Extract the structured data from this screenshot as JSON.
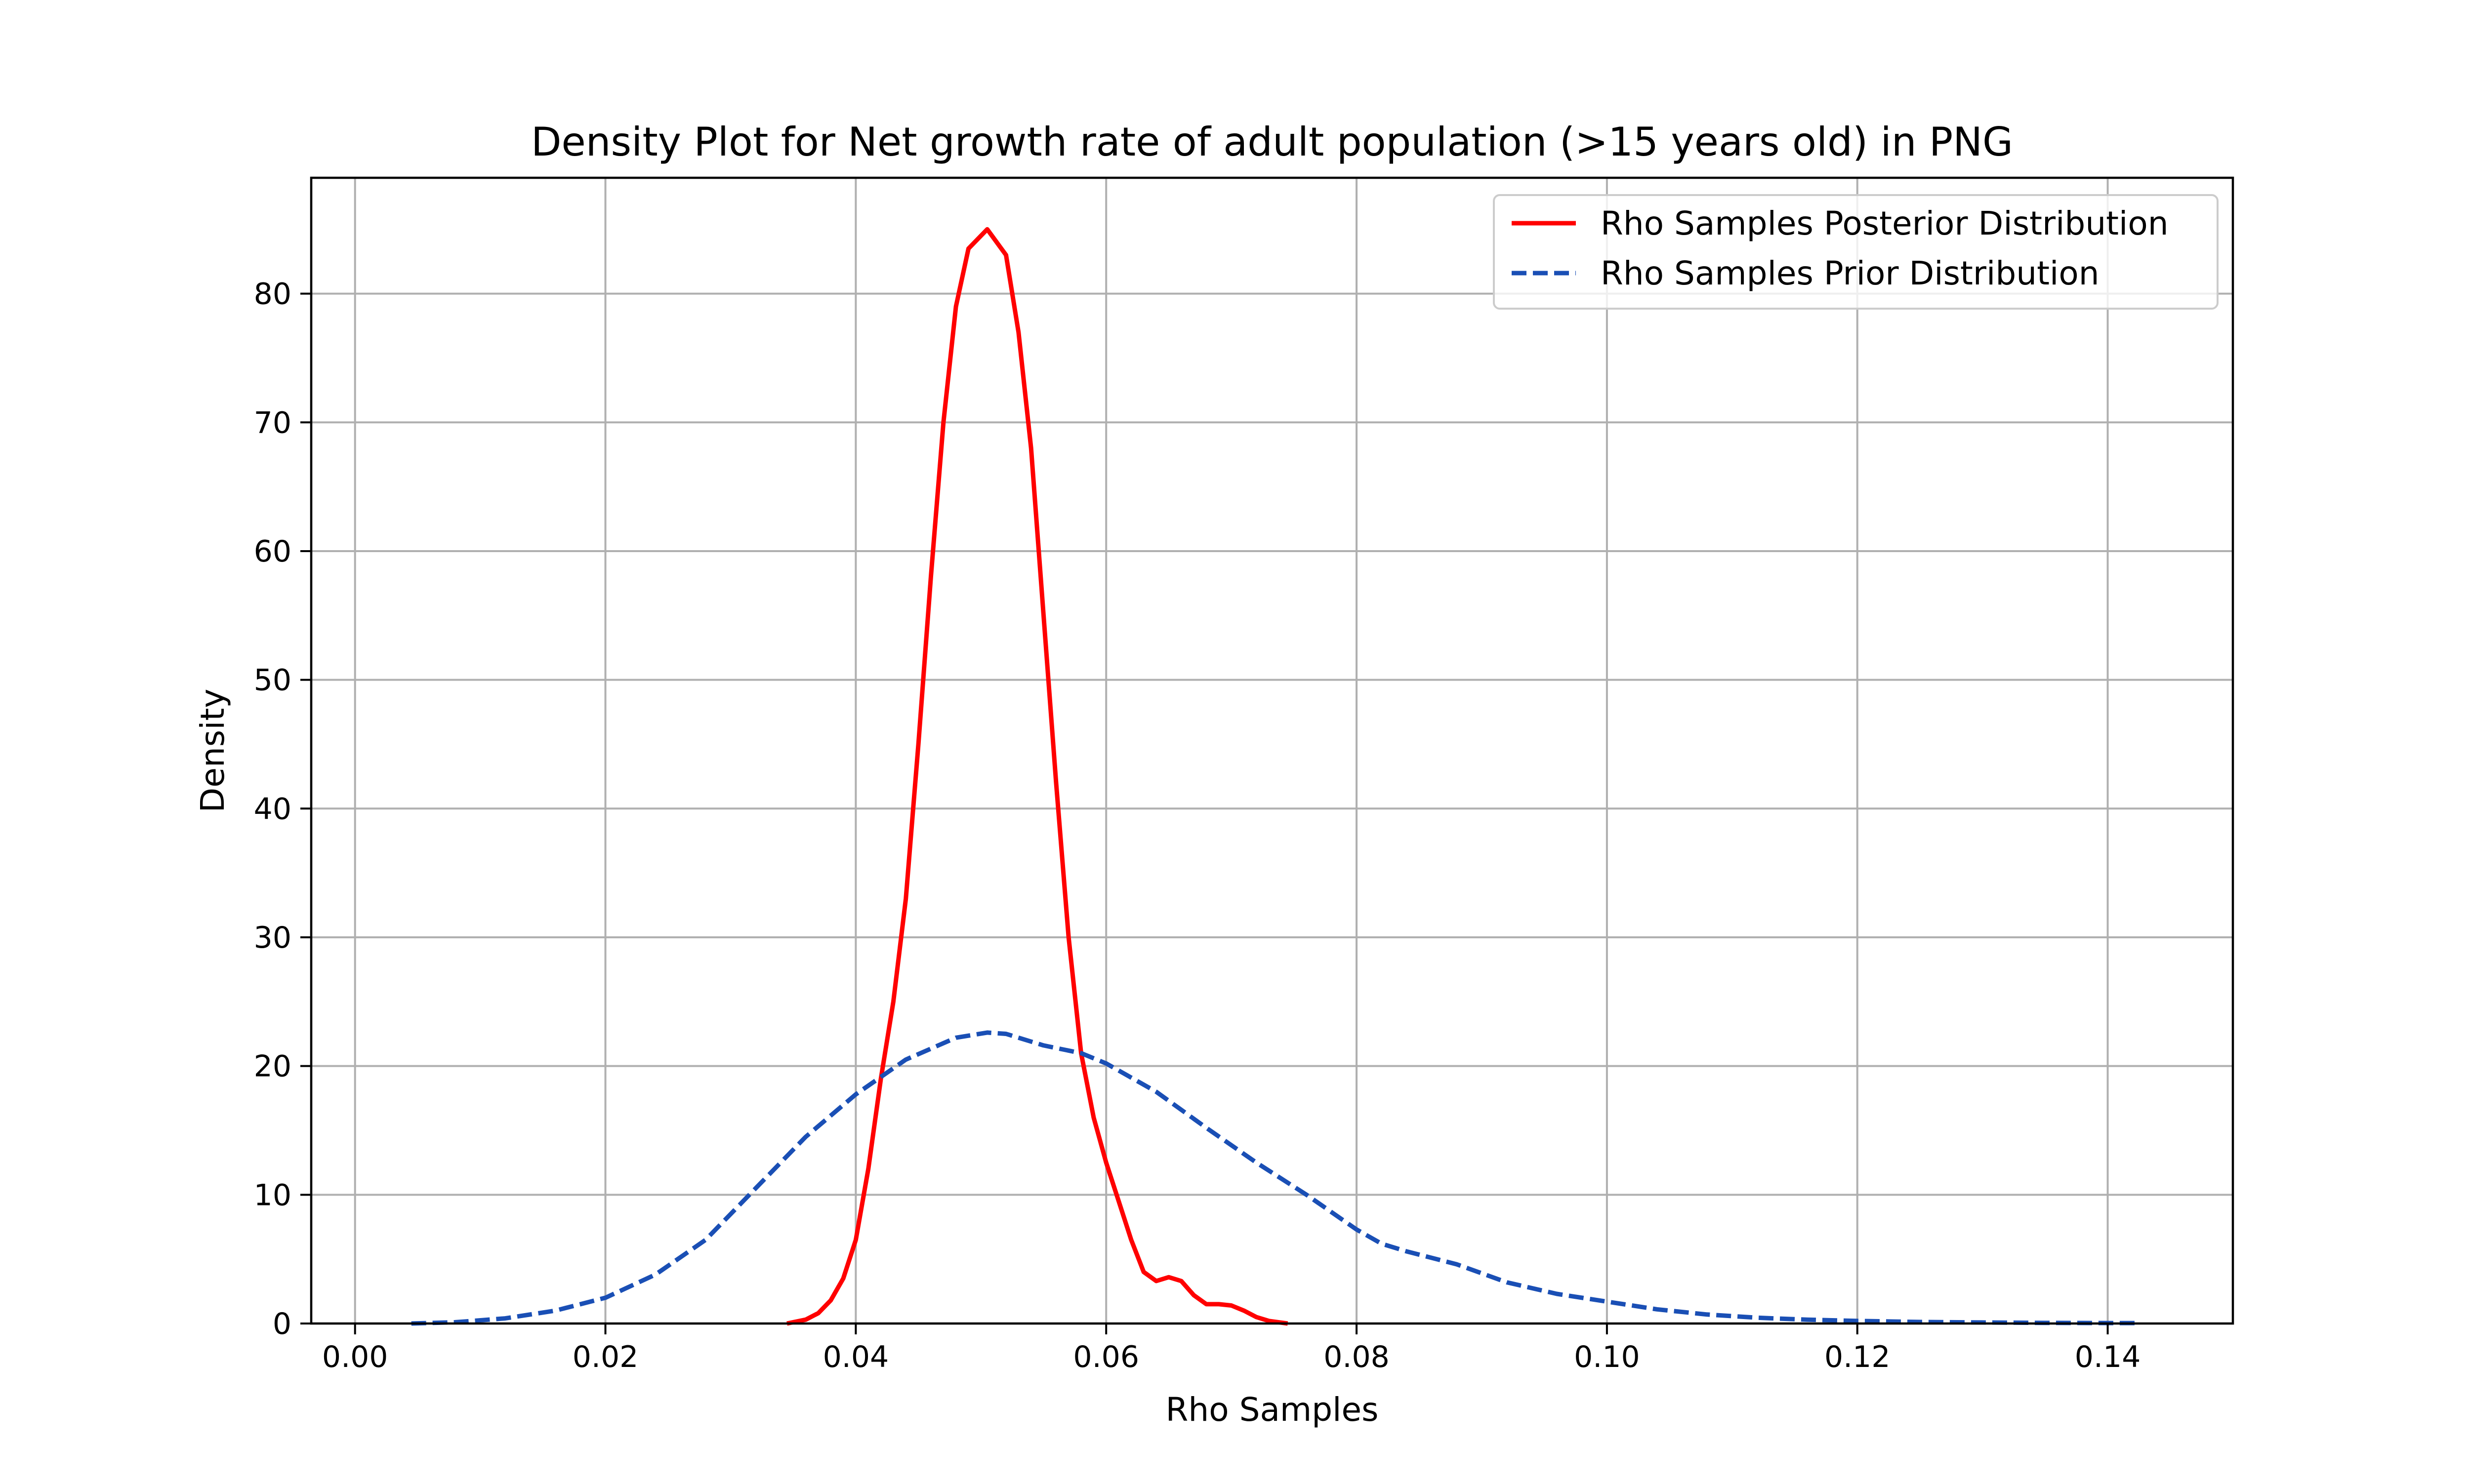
{
  "chart_data": {
    "type": "line",
    "title": "Density Plot for Net growth rate of adult population (>15 years old) in PNG",
    "xlabel": "Rho Samples",
    "ylabel": "Density",
    "xlim": [
      -0.0035,
      0.15
    ],
    "ylim": [
      0,
      89
    ],
    "xticks": [
      0.0,
      0.02,
      0.04,
      0.06,
      0.08,
      0.1,
      0.12,
      0.14
    ],
    "xtick_labels": [
      "0.00",
      "0.02",
      "0.04",
      "0.06",
      "0.08",
      "0.10",
      "0.12",
      "0.14"
    ],
    "yticks": [
      0,
      10,
      20,
      30,
      40,
      50,
      60,
      70,
      80
    ],
    "ytick_labels": [
      "0",
      "10",
      "20",
      "30",
      "40",
      "50",
      "60",
      "70",
      "80"
    ],
    "grid": true,
    "legend_position": "top-right",
    "series": [
      {
        "name": "Rho Samples Posterior Distribution",
        "color": "#ff0000",
        "line_style": "solid",
        "points": [
          [
            0.0345,
            0.0
          ],
          [
            0.036,
            0.3
          ],
          [
            0.037,
            0.8
          ],
          [
            0.038,
            1.8
          ],
          [
            0.039,
            3.5
          ],
          [
            0.04,
            6.5
          ],
          [
            0.041,
            12.0
          ],
          [
            0.042,
            19.0
          ],
          [
            0.043,
            25.0
          ],
          [
            0.044,
            33.0
          ],
          [
            0.045,
            45.0
          ],
          [
            0.046,
            58.0
          ],
          [
            0.047,
            70.0
          ],
          [
            0.048,
            79.0
          ],
          [
            0.049,
            83.5
          ],
          [
            0.0505,
            85.0
          ],
          [
            0.052,
            83.0
          ],
          [
            0.053,
            77.0
          ],
          [
            0.054,
            68.0
          ],
          [
            0.055,
            55.0
          ],
          [
            0.056,
            42.0
          ],
          [
            0.057,
            30.0
          ],
          [
            0.058,
            21.0
          ],
          [
            0.059,
            16.0
          ],
          [
            0.06,
            12.5
          ],
          [
            0.061,
            9.5
          ],
          [
            0.062,
            6.5
          ],
          [
            0.063,
            4.0
          ],
          [
            0.064,
            3.3
          ],
          [
            0.065,
            3.6
          ],
          [
            0.066,
            3.3
          ],
          [
            0.067,
            2.2
          ],
          [
            0.068,
            1.5
          ],
          [
            0.069,
            1.5
          ],
          [
            0.07,
            1.4
          ],
          [
            0.071,
            1.0
          ],
          [
            0.072,
            0.5
          ],
          [
            0.073,
            0.2
          ],
          [
            0.0745,
            0.0
          ]
        ]
      },
      {
        "name": "Rho Samples Prior Distribution",
        "color": "#1a4fb5",
        "line_style": "dashed",
        "points": [
          [
            0.0045,
            0.0
          ],
          [
            0.008,
            0.1
          ],
          [
            0.012,
            0.4
          ],
          [
            0.016,
            1.0
          ],
          [
            0.02,
            2.0
          ],
          [
            0.024,
            3.8
          ],
          [
            0.028,
            6.5
          ],
          [
            0.032,
            10.5
          ],
          [
            0.036,
            14.5
          ],
          [
            0.04,
            17.8
          ],
          [
            0.044,
            20.5
          ],
          [
            0.048,
            22.2
          ],
          [
            0.0505,
            22.6
          ],
          [
            0.052,
            22.5
          ],
          [
            0.055,
            21.6
          ],
          [
            0.058,
            21.0
          ],
          [
            0.06,
            20.2
          ],
          [
            0.064,
            18.0
          ],
          [
            0.068,
            15.2
          ],
          [
            0.072,
            12.5
          ],
          [
            0.076,
            10.0
          ],
          [
            0.08,
            7.3
          ],
          [
            0.082,
            6.2
          ],
          [
            0.084,
            5.6
          ],
          [
            0.088,
            4.6
          ],
          [
            0.092,
            3.2
          ],
          [
            0.096,
            2.3
          ],
          [
            0.1,
            1.7
          ],
          [
            0.104,
            1.1
          ],
          [
            0.108,
            0.7
          ],
          [
            0.112,
            0.45
          ],
          [
            0.116,
            0.3
          ],
          [
            0.12,
            0.2
          ],
          [
            0.125,
            0.12
          ],
          [
            0.13,
            0.08
          ],
          [
            0.135,
            0.05
          ],
          [
            0.1425,
            0.03
          ]
        ]
      }
    ]
  }
}
